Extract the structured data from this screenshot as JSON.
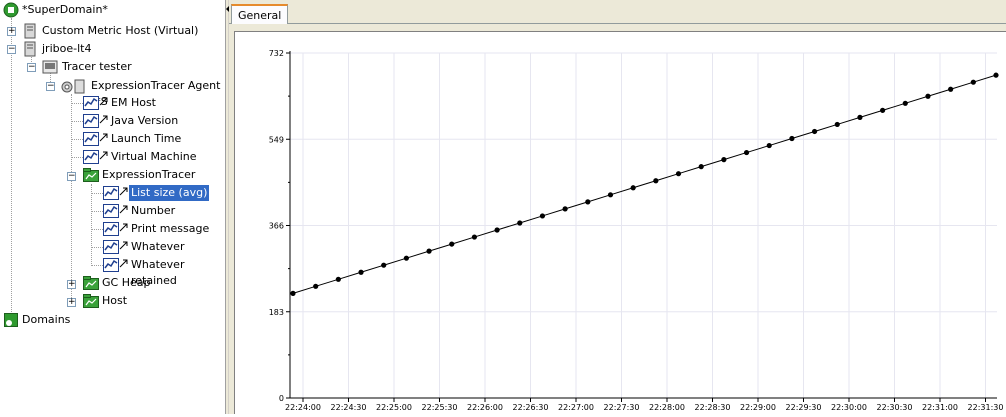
{
  "tree": {
    "root": "*SuperDomain*",
    "custom_metric_host": "Custom Metric Host (Virtual)",
    "host": "jriboe-lt4",
    "process": "Tracer tester",
    "agent": "ExpressionTracer Agent (*S",
    "agent_items": [
      "EM Host",
      "Java Version",
      "Launch Time",
      "Virtual Machine"
    ],
    "expression_tracer": "ExpressionTracer",
    "tracer_items": [
      "List size (avg)",
      "Number",
      "Print message",
      "Whatever",
      "Whatever retained"
    ],
    "gc_heap": "GC Heap",
    "host_node": "Host",
    "domains": "Domains"
  },
  "tabs": {
    "general": "General"
  },
  "chart_data": {
    "type": "line",
    "ylim": [
      0,
      732
    ],
    "yticks": [
      "0",
      "183",
      "366",
      "549",
      "732"
    ],
    "xticks": [
      "22:24:00",
      "22:24:30",
      "22:25:00",
      "22:25:30",
      "22:26:00",
      "22:26:30",
      "22:27:00",
      "22:27:30",
      "22:28:00",
      "22:28:30",
      "22:29:00",
      "22:29:30",
      "22:30:00",
      "22:30:30",
      "22:31:00",
      "22:31:30"
    ],
    "start_value": 222,
    "end_value": 685,
    "point_count": 32,
    "line_color": "#000000",
    "grid": true
  }
}
